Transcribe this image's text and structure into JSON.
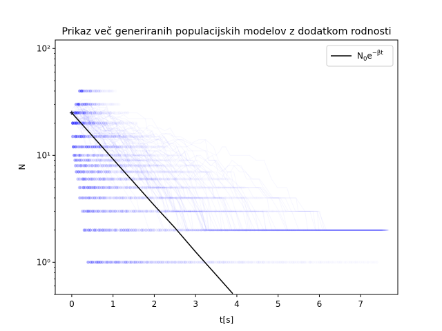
{
  "chart_data": {
    "type": "scatter",
    "title": "Prikaz več generiranih populacijskih modelov z dodatkom rodnosti",
    "xlabel": "t[s]",
    "ylabel": "N",
    "xlim": [
      -0.4,
      7.9
    ],
    "ylim": [
      0.5,
      120
    ],
    "yscale": "log",
    "grid": false,
    "legend_position": "top-right",
    "x_ticks": [
      "0",
      "1",
      "2",
      "3",
      "4",
      "5",
      "6",
      "7"
    ],
    "y_ticks": [
      "10⁰",
      "10¹",
      "10²"
    ],
    "colors": {
      "simulation": "#0000ff",
      "model": "#000000"
    },
    "series": [
      {
        "kind": "line",
        "legend_label": "N₀e^(−βt)",
        "N0": 25,
        "beta": 1.0,
        "x": [
          0,
          0.5,
          1,
          1.5,
          2,
          2.5,
          3,
          3.5,
          3.9
        ],
        "y": [
          25,
          15.2,
          9.2,
          5.6,
          3.4,
          2.1,
          1.25,
          0.76,
          0.51
        ]
      },
      {
        "kind": "scatter",
        "note": "many semi-transparent simulated population trajectories",
        "levels": [
          {
            "N": 1,
            "t_range": [
              0.4,
              7.4
            ]
          },
          {
            "N": 2,
            "t_range": [
              0.3,
              6.0
            ]
          },
          {
            "N": 3,
            "t_range": [
              0.25,
              5.2
            ]
          },
          {
            "N": 4,
            "t_range": [
              0.2,
              4.6
            ]
          },
          {
            "N": 5,
            "t_range": [
              0.18,
              4.2
            ]
          },
          {
            "N": 6,
            "t_range": [
              0.15,
              3.8
            ]
          },
          {
            "N": 7,
            "t_range": [
              0.12,
              3.4
            ]
          },
          {
            "N": 8,
            "t_range": [
              0.1,
              3.1
            ]
          },
          {
            "N": 9,
            "t_range": [
              0.08,
              2.8
            ]
          },
          {
            "N": 10,
            "t_range": [
              0.06,
              2.6
            ]
          },
          {
            "N": 12,
            "t_range": [
              0.05,
              2.3
            ]
          },
          {
            "N": 15,
            "t_range": [
              0.03,
              2.0
            ]
          },
          {
            "N": 20,
            "t_range": [
              0.02,
              1.6
            ]
          },
          {
            "N": 25,
            "t_range": [
              0.0,
              1.4
            ]
          },
          {
            "N": 30,
            "t_range": [
              0.1,
              1.2
            ]
          },
          {
            "N": 40,
            "t_range": [
              0.2,
              1.1
            ]
          }
        ]
      }
    ]
  }
}
